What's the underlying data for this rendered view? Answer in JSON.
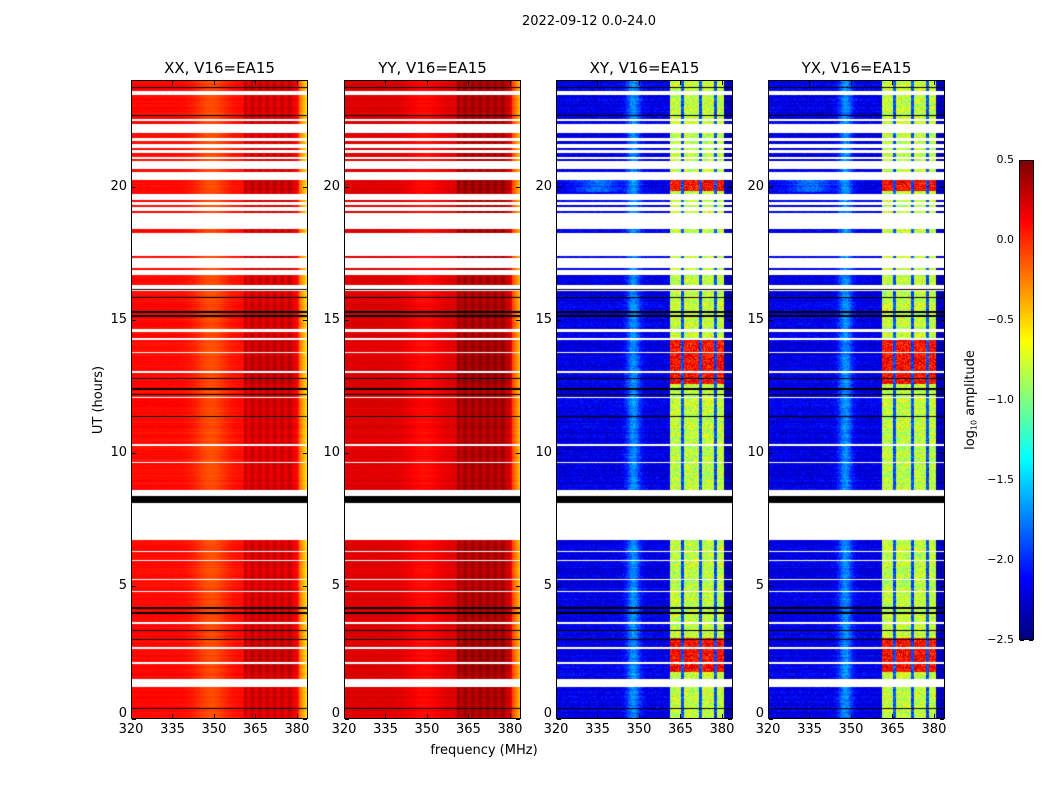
{
  "chart_data": {
    "type": "heatmap",
    "title": "2022-09-12 0.0-24.0",
    "xlabel": "frequency (MHz)",
    "ylabel": "UT (hours)",
    "xlim": [
      320,
      384
    ],
    "ylim": [
      0,
      24
    ],
    "x_ticks": [
      320,
      335,
      350,
      365,
      380
    ],
    "y_ticks": [
      0,
      5,
      10,
      15,
      20
    ],
    "panels": [
      {
        "title": "XX, V16=EA15",
        "pol": "XX"
      },
      {
        "title": "YY, V16=EA15",
        "pol": "YY"
      },
      {
        "title": "XY, V16=EA15",
        "pol": "XY"
      },
      {
        "title": "YX, V16=EA15",
        "pol": "YX"
      }
    ],
    "colorbar": {
      "label_main": "log",
      "label_sub": "10",
      "label_rest": " amplitude",
      "range": [
        -2.5,
        0.5
      ],
      "ticks": [
        "0.5",
        "0.0",
        "−0.5",
        "−1.0",
        "−1.5",
        "−2.0",
        "−2.5"
      ],
      "tick_values": [
        0.5,
        0.0,
        -0.5,
        -1.0,
        -1.5,
        -2.0,
        -2.5
      ],
      "colormap": "jet"
    },
    "flagged_hours": [
      [
        23.46,
        23.61
      ],
      [
        22.48,
        22.56
      ],
      [
        22.03,
        22.37
      ],
      [
        21.73,
        21.85
      ],
      [
        21.47,
        21.62
      ],
      [
        21.28,
        21.4
      ],
      [
        21.06,
        21.13
      ],
      [
        20.68,
        20.98
      ],
      [
        20.27,
        20.57
      ],
      [
        19.52,
        19.74
      ],
      [
        19.33,
        19.44
      ],
      [
        19.11,
        19.26
      ],
      [
        18.43,
        19.03
      ],
      [
        17.42,
        18.28
      ],
      [
        16.97,
        17.34
      ],
      [
        16.7,
        16.89
      ],
      [
        16.1,
        16.33
      ],
      [
        14.55,
        14.65
      ],
      [
        14.25,
        14.32
      ],
      [
        13.75,
        13.8
      ],
      [
        13.0,
        13.06
      ],
      [
        12.05,
        12.1
      ],
      [
        10.25,
        10.32
      ],
      [
        9.6,
        9.66
      ],
      [
        8.0,
        8.6
      ],
      [
        6.7,
        8.0
      ],
      [
        6.25,
        6.3
      ],
      [
        5.9,
        5.95
      ],
      [
        5.2,
        5.25
      ],
      [
        4.75,
        4.8
      ],
      [
        3.55,
        3.6
      ],
      [
        2.6,
        2.66
      ],
      [
        2.05,
        2.12
      ],
      [
        1.16,
        1.46
      ]
    ],
    "black_lines_hours": [
      0.35,
      2.95,
      3.3,
      3.95,
      4.15,
      11.35,
      12.2,
      12.4,
      12.8,
      15.15,
      15.3,
      15.85,
      16.15,
      22.7,
      23.75
    ],
    "black_band_hours": [
      8.1,
      8.35
    ],
    "rfi_band_MHz": [
      361.5,
      381
    ],
    "rfi_strong_hours": [
      [
        12.6,
        14.3
      ],
      [
        19.85,
        20.35
      ],
      [
        1.75,
        3.0
      ]
    ]
  }
}
